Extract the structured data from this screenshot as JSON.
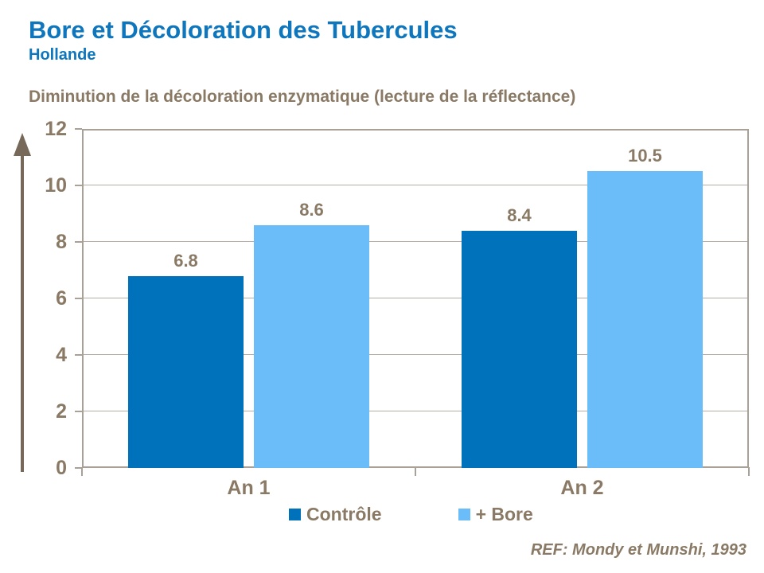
{
  "page": {
    "title": "Bore et Décoloration des Tubercules",
    "subtitle": "Hollande",
    "reference": "REF: Mondy et Munshi, 1993"
  },
  "colors": {
    "title_blue": "#0d76bd",
    "text_brown": "#8a7a65",
    "axis_taupe": "#a9a098",
    "gridline_taupe": "#b5aca3",
    "arrow_brown": "#77695a",
    "controle_blue": "#0072bc",
    "bore_blue": "#6abdf9"
  },
  "chart_data": {
    "type": "bar",
    "title": "Diminution de la décoloration enzymatique (lecture de la réflectance)",
    "categories": [
      "An 1",
      "An 2"
    ],
    "series": [
      {
        "name": "Contrôle",
        "color": "#0072bc",
        "values": [
          6.8,
          8.4
        ]
      },
      {
        "name": "+ Bore",
        "color": "#6abdf9",
        "values": [
          8.6,
          10.5
        ]
      }
    ],
    "xlabel": "",
    "ylabel": "",
    "ylim": [
      0,
      12
    ],
    "yticks": [
      0,
      2,
      4,
      6,
      8,
      10,
      12
    ],
    "grid": true,
    "legend_position": "bottom"
  }
}
